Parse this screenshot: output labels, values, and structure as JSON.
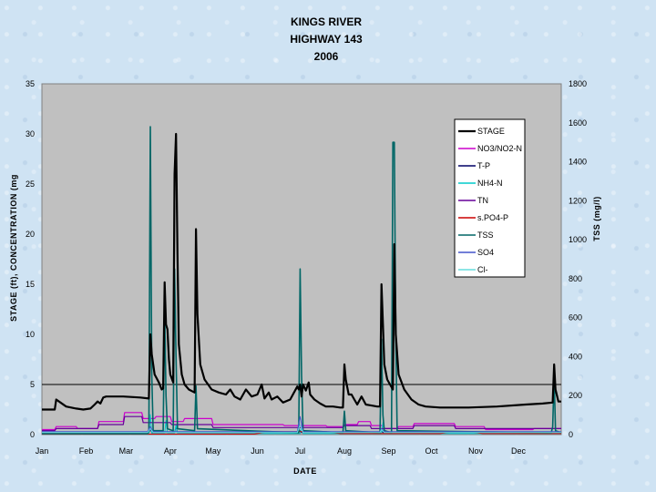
{
  "chart_data": {
    "type": "line",
    "title": [
      "KINGS RIVER",
      "HIGHWAY 143",
      "2006"
    ],
    "xlabel": "DATE",
    "ylabel": "STAGE (ft), CONCENTRATION (mg",
    "y2label": "TSS (mg/l)",
    "x_unit": "day of year 2006",
    "xlim": [
      1,
      365
    ],
    "ylim": [
      0,
      35
    ],
    "y2lim": [
      0,
      1800
    ],
    "yticks": [
      "0",
      "5",
      "10",
      "15",
      "20",
      "25",
      "30",
      "35"
    ],
    "y2ticks": [
      "0",
      "200",
      "400",
      "600",
      "800",
      "1000",
      "1200",
      "1400",
      "1600",
      "1800"
    ],
    "xticks": [
      {
        "label": "Jan",
        "day": 1
      },
      {
        "label": "Feb",
        "day": 32
      },
      {
        "label": "Mar",
        "day": 60
      },
      {
        "label": "Apr",
        "day": 91
      },
      {
        "label": "May",
        "day": 121
      },
      {
        "label": "Jun",
        "day": 152
      },
      {
        "label": "Jul",
        "day": 182
      },
      {
        "label": "Aug",
        "day": 213
      },
      {
        "label": "Sep",
        "day": 244
      },
      {
        "label": "Oct",
        "day": 274
      },
      {
        "label": "Nov",
        "day": 305
      },
      {
        "label": "Dec",
        "day": 335
      }
    ],
    "reference_line": {
      "axis": "y",
      "value": 5
    },
    "legend_position": "top-right",
    "series": [
      {
        "name": "STAGE",
        "color": "#000000",
        "width": 2.2,
        "axis": "left",
        "points": [
          [
            1,
            2.5
          ],
          [
            10,
            2.5
          ],
          [
            11,
            3.5
          ],
          [
            14,
            3.2
          ],
          [
            18,
            2.8
          ],
          [
            25,
            2.6
          ],
          [
            30,
            2.5
          ],
          [
            35,
            2.6
          ],
          [
            38,
            3.0
          ],
          [
            40,
            3.3
          ],
          [
            42,
            3.1
          ],
          [
            44,
            3.7
          ],
          [
            46,
            3.8
          ],
          [
            50,
            3.8
          ],
          [
            58,
            3.8
          ],
          [
            70,
            3.7
          ],
          [
            76,
            3.6
          ],
          [
            77,
            10.0
          ],
          [
            78,
            8.0
          ],
          [
            80,
            6.0
          ],
          [
            83,
            5.2
          ],
          [
            85,
            4.5
          ],
          [
            86,
            4.6
          ],
          [
            87,
            15.2
          ],
          [
            88,
            11.0
          ],
          [
            89,
            10.5
          ],
          [
            90,
            7.5
          ],
          [
            91,
            6.0
          ],
          [
            93,
            5.2
          ],
          [
            94,
            26.0
          ],
          [
            95,
            30.0
          ],
          [
            96,
            18.0
          ],
          [
            97,
            9.0
          ],
          [
            99,
            6.0
          ],
          [
            101,
            5.0
          ],
          [
            104,
            4.5
          ],
          [
            108,
            4.2
          ],
          [
            109,
            20.5
          ],
          [
            110,
            12.0
          ],
          [
            112,
            7.0
          ],
          [
            115,
            5.5
          ],
          [
            120,
            4.5
          ],
          [
            125,
            4.2
          ],
          [
            130,
            4.0
          ],
          [
            133,
            4.5
          ],
          [
            136,
            3.8
          ],
          [
            140,
            3.5
          ],
          [
            144,
            4.5
          ],
          [
            148,
            3.8
          ],
          [
            152,
            4.0
          ],
          [
            155,
            5.0
          ],
          [
            157,
            3.6
          ],
          [
            160,
            4.2
          ],
          [
            162,
            3.5
          ],
          [
            166,
            3.8
          ],
          [
            170,
            3.2
          ],
          [
            175,
            3.5
          ],
          [
            180,
            4.8
          ],
          [
            181,
            4.5
          ],
          [
            182,
            5.0
          ],
          [
            183,
            3.8
          ],
          [
            184,
            5.0
          ],
          [
            186,
            4.4
          ],
          [
            188,
            5.2
          ],
          [
            189,
            4.0
          ],
          [
            192,
            3.5
          ],
          [
            196,
            3.1
          ],
          [
            200,
            2.8
          ],
          [
            205,
            2.8
          ],
          [
            210,
            2.7
          ],
          [
            212,
            2.7
          ],
          [
            213,
            7.0
          ],
          [
            214,
            5.5
          ],
          [
            216,
            4.0
          ],
          [
            218,
            4.0
          ],
          [
            220,
            3.5
          ],
          [
            222,
            3.0
          ],
          [
            225,
            3.8
          ],
          [
            228,
            3.0
          ],
          [
            232,
            2.9
          ],
          [
            236,
            2.8
          ],
          [
            238,
            2.8
          ],
          [
            239,
            15.0
          ],
          [
            240,
            11.0
          ],
          [
            241,
            7.0
          ],
          [
            243,
            5.5
          ],
          [
            245,
            5.0
          ],
          [
            247,
            4.5
          ],
          [
            248,
            19.0
          ],
          [
            249,
            10.0
          ],
          [
            251,
            6.0
          ],
          [
            255,
            4.5
          ],
          [
            260,
            3.5
          ],
          [
            265,
            3.0
          ],
          [
            270,
            2.8
          ],
          [
            280,
            2.7
          ],
          [
            300,
            2.7
          ],
          [
            320,
            2.8
          ],
          [
            340,
            3.0
          ],
          [
            352,
            3.1
          ],
          [
            359,
            3.2
          ],
          [
            360,
            7.0
          ],
          [
            361,
            4.5
          ],
          [
            363,
            3.3
          ],
          [
            365,
            3.3
          ]
        ]
      },
      {
        "name": "NO3/NO2-N",
        "color": "#cc00cc",
        "width": 1.2,
        "axis": "left",
        "points": [
          [
            1,
            0.5
          ],
          [
            10,
            0.5
          ],
          [
            11,
            0.8
          ],
          [
            25,
            0.8
          ],
          [
            26,
            0.6
          ],
          [
            40,
            0.6
          ],
          [
            41,
            1.3
          ],
          [
            58,
            1.3
          ],
          [
            59,
            2.2
          ],
          [
            71,
            2.2
          ],
          [
            72,
            1.6
          ],
          [
            80,
            1.6
          ],
          [
            81,
            1.8
          ],
          [
            91,
            1.8
          ],
          [
            92,
            1.3
          ],
          [
            100,
            1.3
          ],
          [
            101,
            1.6
          ],
          [
            120,
            1.6
          ],
          [
            121,
            1.0
          ],
          [
            170,
            1.0
          ],
          [
            171,
            0.9
          ],
          [
            200,
            0.9
          ],
          [
            201,
            0.8
          ],
          [
            212,
            0.8
          ],
          [
            213,
            1.0
          ],
          [
            222,
            1.0
          ],
          [
            223,
            1.3
          ],
          [
            231,
            1.3
          ],
          [
            232,
            0.9
          ],
          [
            240,
            0.9
          ],
          [
            241,
            0.6
          ],
          [
            250,
            0.6
          ],
          [
            251,
            0.8
          ],
          [
            261,
            0.8
          ],
          [
            262,
            1.1
          ],
          [
            290,
            1.1
          ],
          [
            291,
            0.8
          ],
          [
            311,
            0.8
          ],
          [
            312,
            0.5
          ],
          [
            345,
            0.5
          ],
          [
            346,
            0.6
          ],
          [
            365,
            0.6
          ]
        ]
      },
      {
        "name": "T-P",
        "color": "#000066",
        "width": 1.0,
        "axis": "left",
        "points": [
          [
            1,
            0.15
          ],
          [
            60,
            0.15
          ],
          [
            76,
            0.2
          ],
          [
            77,
            0.6
          ],
          [
            78,
            0.2
          ],
          [
            94,
            0.2
          ],
          [
            95,
            0.8
          ],
          [
            96,
            0.2
          ],
          [
            180,
            0.2
          ],
          [
            182,
            0.4
          ],
          [
            183,
            0.2
          ],
          [
            238,
            0.2
          ],
          [
            239,
            0.5
          ],
          [
            240,
            0.2
          ],
          [
            365,
            0.2
          ]
        ]
      },
      {
        "name": "NH4-N",
        "color": "#00cccc",
        "width": 1.0,
        "axis": "left",
        "points": [
          [
            1,
            0.1
          ],
          [
            76,
            0.1
          ],
          [
            77,
            2.0
          ],
          [
            78,
            0.1
          ],
          [
            87,
            0.1
          ],
          [
            88,
            1.4
          ],
          [
            89,
            0.1
          ],
          [
            94,
            0.1
          ],
          [
            95,
            1.0
          ],
          [
            96,
            0.1
          ],
          [
            182,
            0.1
          ],
          [
            183,
            0.8
          ],
          [
            184,
            0.1
          ],
          [
            239,
            0.1
          ],
          [
            240,
            1.2
          ],
          [
            241,
            0.1
          ],
          [
            365,
            0.1
          ]
        ]
      },
      {
        "name": "TN",
        "color": "#660099",
        "width": 1.2,
        "axis": "left",
        "points": [
          [
            1,
            0.4
          ],
          [
            10,
            0.4
          ],
          [
            11,
            0.6
          ],
          [
            40,
            0.6
          ],
          [
            41,
            1.0
          ],
          [
            58,
            1.0
          ],
          [
            59,
            1.8
          ],
          [
            71,
            1.8
          ],
          [
            72,
            1.2
          ],
          [
            91,
            1.2
          ],
          [
            92,
            1.0
          ],
          [
            120,
            1.0
          ],
          [
            121,
            0.7
          ],
          [
            212,
            0.7
          ],
          [
            213,
            0.9
          ],
          [
            231,
            0.9
          ],
          [
            232,
            0.6
          ],
          [
            261,
            0.6
          ],
          [
            262,
            0.9
          ],
          [
            290,
            0.9
          ],
          [
            291,
            0.6
          ],
          [
            365,
            0.6
          ]
        ]
      },
      {
        "name": "s.PO4-P",
        "color": "#cc0000",
        "width": 1.0,
        "axis": "left",
        "points": [
          [
            1,
            0.05
          ],
          [
            150,
            0.05
          ],
          [
            160,
            0.3
          ],
          [
            200,
            0.3
          ],
          [
            210,
            0.1
          ],
          [
            280,
            0.1
          ],
          [
            290,
            0.3
          ],
          [
            300,
            0.3
          ],
          [
            310,
            0.1
          ],
          [
            365,
            0.1
          ]
        ]
      },
      {
        "name": "TSS",
        "color": "#006666",
        "width": 1.6,
        "axis": "right",
        "points": [
          [
            1,
            5
          ],
          [
            75,
            5
          ],
          [
            76,
            20
          ],
          [
            77,
            1580
          ],
          [
            78,
            300
          ],
          [
            79,
            20
          ],
          [
            86,
            20
          ],
          [
            87,
            650
          ],
          [
            88,
            200
          ],
          [
            89,
            30
          ],
          [
            93,
            20
          ],
          [
            94,
            850
          ],
          [
            95,
            400
          ],
          [
            96,
            30
          ],
          [
            108,
            20
          ],
          [
            109,
            250
          ],
          [
            110,
            30
          ],
          [
            181,
            10
          ],
          [
            182,
            850
          ],
          [
            183,
            300
          ],
          [
            184,
            20
          ],
          [
            212,
            10
          ],
          [
            213,
            120
          ],
          [
            214,
            20
          ],
          [
            238,
            10
          ],
          [
            239,
            490
          ],
          [
            240,
            100
          ],
          [
            241,
            20
          ],
          [
            246,
            10
          ],
          [
            247,
            1500
          ],
          [
            248,
            1500
          ],
          [
            249,
            500
          ],
          [
            250,
            20
          ],
          [
            358,
            10
          ],
          [
            359,
            40
          ],
          [
            360,
            300
          ],
          [
            361,
            20
          ],
          [
            365,
            10
          ]
        ]
      },
      {
        "name": "SO4",
        "color": "#4455cc",
        "width": 1.0,
        "axis": "left",
        "points": [
          [
            1,
            0.3
          ],
          [
            75,
            0.3
          ],
          [
            77,
            0.8
          ],
          [
            79,
            0.3
          ],
          [
            180,
            0.3
          ],
          [
            182,
            1.8
          ],
          [
            184,
            0.3
          ],
          [
            238,
            0.3
          ],
          [
            239,
            0.6
          ],
          [
            241,
            0.3
          ],
          [
            365,
            0.3
          ]
        ]
      },
      {
        "name": "Cl-",
        "color": "#66dddd",
        "width": 1.0,
        "axis": "left",
        "points": [
          [
            1,
            0.2
          ],
          [
            75,
            0.2
          ],
          [
            77,
            0.6
          ],
          [
            79,
            0.2
          ],
          [
            180,
            0.2
          ],
          [
            182,
            1.0
          ],
          [
            184,
            0.2
          ],
          [
            238,
            0.2
          ],
          [
            239,
            0.5
          ],
          [
            241,
            0.2
          ],
          [
            365,
            0.2
          ]
        ]
      }
    ]
  }
}
